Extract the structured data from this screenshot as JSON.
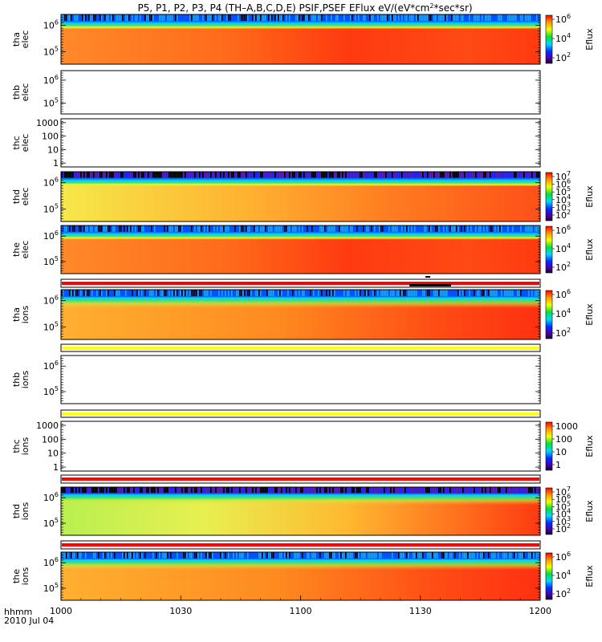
{
  "chart_data": {
    "type": "heatmap",
    "title": "P5, P1, P2, P3, P4 (TH–A,B,C,D,E) PSIF,PSEF EFlux eV/(eV*cm²*sec*sr)",
    "title_parts": {
      "main": "P5, P1, P2, P3, P4 (TH–A,B,C,D,E) PSIF,PSEF EFlux eV/(eV*cm",
      "sup": "2",
      "end": "*sec*sr)"
    },
    "x_axis": {
      "label_line1": "hhmm",
      "label_line2": "2010 Jul 04",
      "range": [
        "1000",
        "1200"
      ],
      "ticks": [
        "1000",
        "1030",
        "1100",
        "1130",
        "1200"
      ]
    },
    "colorbar_label": "Eflux",
    "panels": [
      {
        "id": "tha-elec",
        "ylabel": [
          "tha",
          "elec"
        ],
        "yticks": [
          {
            "base": "10",
            "exp": "6"
          },
          {
            "base": "10",
            "exp": "5"
          }
        ],
        "has_data": true,
        "colorbar_ticks": [
          {
            "base": "10",
            "exp": "6"
          },
          {
            "base": "10",
            "exp": "4"
          },
          {
            "base": "10",
            "exp": "2"
          }
        ],
        "colorscale": "rainbow"
      },
      {
        "id": "thb-elec",
        "ylabel": [
          "thb",
          "elec"
        ],
        "yticks": [
          {
            "base": "10",
            "exp": "6"
          },
          {
            "base": "10",
            "exp": "5"
          }
        ],
        "has_data": false
      },
      {
        "id": "thc-elec",
        "ylabel": [
          "thc",
          "elec"
        ],
        "yticks": [
          {
            "base": "1000"
          },
          {
            "base": "100"
          },
          {
            "base": "10"
          },
          {
            "base": "1"
          }
        ],
        "has_data": false
      },
      {
        "id": "thd-elec",
        "ylabel": [
          "thd",
          "elec"
        ],
        "yticks": [
          {
            "base": "10",
            "exp": "6"
          },
          {
            "base": "10",
            "exp": "5"
          }
        ],
        "has_data": true,
        "colorbar_ticks": [
          {
            "base": "10",
            "exp": "7"
          },
          {
            "base": "10",
            "exp": "6"
          },
          {
            "base": "10",
            "exp": "5"
          },
          {
            "base": "10",
            "exp": "4"
          },
          {
            "base": "10",
            "exp": "3"
          },
          {
            "base": "10",
            "exp": "2"
          }
        ],
        "colorscale": "rainbow"
      },
      {
        "id": "the-elec",
        "ylabel": [
          "the",
          "elec"
        ],
        "yticks": [
          {
            "base": "10",
            "exp": "6"
          },
          {
            "base": "10",
            "exp": "5"
          }
        ],
        "has_data": true,
        "colorbar_ticks": [
          {
            "base": "10",
            "exp": "6"
          },
          {
            "base": "10",
            "exp": "4"
          },
          {
            "base": "10",
            "exp": "2"
          }
        ],
        "colorscale": "rainbow"
      },
      {
        "id": "tha-ions",
        "ylabel": [
          "tha",
          "ions"
        ],
        "yticks": [
          {
            "base": "10",
            "exp": "6"
          },
          {
            "base": "10",
            "exp": "5"
          }
        ],
        "has_data": true,
        "colorbar_ticks": [
          {
            "base": "10",
            "exp": "6"
          },
          {
            "base": "10",
            "exp": "4"
          },
          {
            "base": "10",
            "exp": "2"
          }
        ],
        "colorscale": "rainbow"
      },
      {
        "id": "thb-ions",
        "ylabel": [
          "thb",
          "ions"
        ],
        "yticks": [
          {
            "base": "10",
            "exp": "6"
          },
          {
            "base": "10",
            "exp": "5"
          }
        ],
        "has_data": false
      },
      {
        "id": "thc-ions",
        "ylabel": [
          "thc",
          "ions"
        ],
        "yticks": [
          {
            "base": "1000"
          },
          {
            "base": "100"
          },
          {
            "base": "10"
          },
          {
            "base": "1"
          }
        ],
        "has_data": false,
        "colorbar_ticks": [
          {
            "base": "1000"
          },
          {
            "base": "100"
          },
          {
            "base": "10"
          },
          {
            "base": "1"
          }
        ],
        "colorscale": "rainbow"
      },
      {
        "id": "thd-ions",
        "ylabel": [
          "thd",
          "ions"
        ],
        "yticks": [
          {
            "base": "10",
            "exp": "6"
          },
          {
            "base": "10",
            "exp": "5"
          }
        ],
        "has_data": true,
        "colorbar_ticks": [
          {
            "base": "10",
            "exp": "7"
          },
          {
            "base": "10",
            "exp": "6"
          },
          {
            "base": "10",
            "exp": "5"
          },
          {
            "base": "10",
            "exp": "4"
          },
          {
            "base": "10",
            "exp": "3"
          },
          {
            "base": "10",
            "exp": "2"
          }
        ],
        "colorscale": "rainbow"
      },
      {
        "id": "the-ions",
        "ylabel": [
          "the",
          "ions"
        ],
        "yticks": [
          {
            "base": "10",
            "exp": "6"
          },
          {
            "base": "10",
            "exp": "5"
          }
        ],
        "has_data": true,
        "colorbar_ticks": [
          {
            "base": "10",
            "exp": "6"
          },
          {
            "base": "10",
            "exp": "4"
          },
          {
            "base": "10",
            "exp": "2"
          }
        ],
        "colorscale": "rainbow"
      }
    ],
    "status_bars": [
      {
        "after": "the-elec",
        "color": "#ff0000"
      },
      {
        "after": "tha-ions",
        "color": "#ffff00"
      },
      {
        "after": "thb-ions",
        "color": "#ffff00"
      },
      {
        "after": "thc-ions",
        "color": "#ff0000"
      },
      {
        "after": "thd-ions",
        "color": "#ff0000"
      }
    ]
  },
  "colors": {
    "axis": "#000000",
    "background": "#ffffff"
  }
}
